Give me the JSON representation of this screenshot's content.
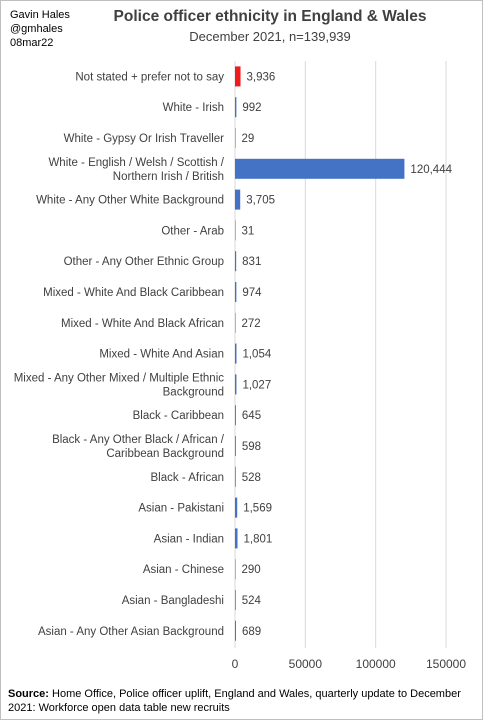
{
  "header": {
    "author_name": "Gavin Hales",
    "author_handle": "@gmhales",
    "date": "08mar22"
  },
  "chart_data": {
    "type": "bar",
    "orientation": "horizontal",
    "title": "Police officer ethnicity in England & Wales",
    "subtitle": "December 2021, n=139,939",
    "categories": [
      "Not stated + prefer not to say",
      "White - Irish",
      "White - Gypsy Or Irish Traveller",
      "White - English / Welsh / Scottish / Northern Irish / British",
      "White - Any Other White Background",
      "Other - Arab",
      "Other - Any Other Ethnic Group",
      "Mixed - White And Black Caribbean",
      "Mixed - White And Black African",
      "Mixed - White And Asian",
      "Mixed - Any Other Mixed / Multiple Ethnic Background",
      "Black - Caribbean",
      "Black - Any Other Black / African / Caribbean Background",
      "Black - African",
      "Asian - Pakistani",
      "Asian - Indian",
      "Asian - Chinese",
      "Asian - Bangladeshi",
      "Asian - Any Other Asian Background"
    ],
    "values": [
      3936,
      992,
      29,
      120444,
      3705,
      31,
      831,
      974,
      272,
      1054,
      1027,
      645,
      598,
      528,
      1569,
      1801,
      290,
      524,
      689
    ],
    "value_labels": [
      "3,936",
      "992",
      "29",
      "120,444",
      "3,705",
      "31",
      "831",
      "974",
      "272",
      "1,054",
      "1,027",
      "645",
      "598",
      "528",
      "1,569",
      "1,801",
      "290",
      "524",
      "689"
    ],
    "highlight_index": 0,
    "colors": {
      "highlight": "#ee1c1c",
      "bar": "#4472c4",
      "grid": "#d9d9d9"
    },
    "xlim": [
      0,
      150000
    ],
    "xticks": [
      0,
      50000,
      100000,
      150000
    ],
    "xtick_labels": [
      "0",
      "50000",
      "100000",
      "150000"
    ],
    "grid": true,
    "legend": "none"
  },
  "footer": {
    "source_label": "Source:",
    "source_text": " Home Office, Police officer uplift, England and Wales, quarterly update to December 2021: Workforce open data table new recruits"
  }
}
